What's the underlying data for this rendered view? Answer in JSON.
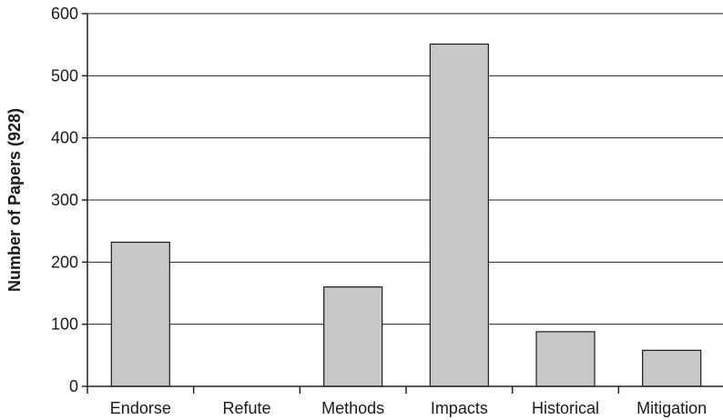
{
  "chart_data": {
    "type": "bar",
    "title": "",
    "xlabel": "",
    "ylabel": "Number of Papers (928)",
    "categories": [
      "Endorse",
      "Refute",
      "Methods",
      "Impacts",
      "Historical",
      "Mitigation"
    ],
    "values": [
      232,
      0,
      160,
      551,
      88,
      58
    ],
    "ylim": [
      0,
      600
    ],
    "yticks": [
      0,
      100,
      200,
      300,
      400,
      500,
      600
    ],
    "grid": true,
    "legend": "none",
    "colors": {
      "bar_fill": "#c8c8c8",
      "bar_stroke": "#1a1a1a",
      "axis": "#222222"
    }
  }
}
